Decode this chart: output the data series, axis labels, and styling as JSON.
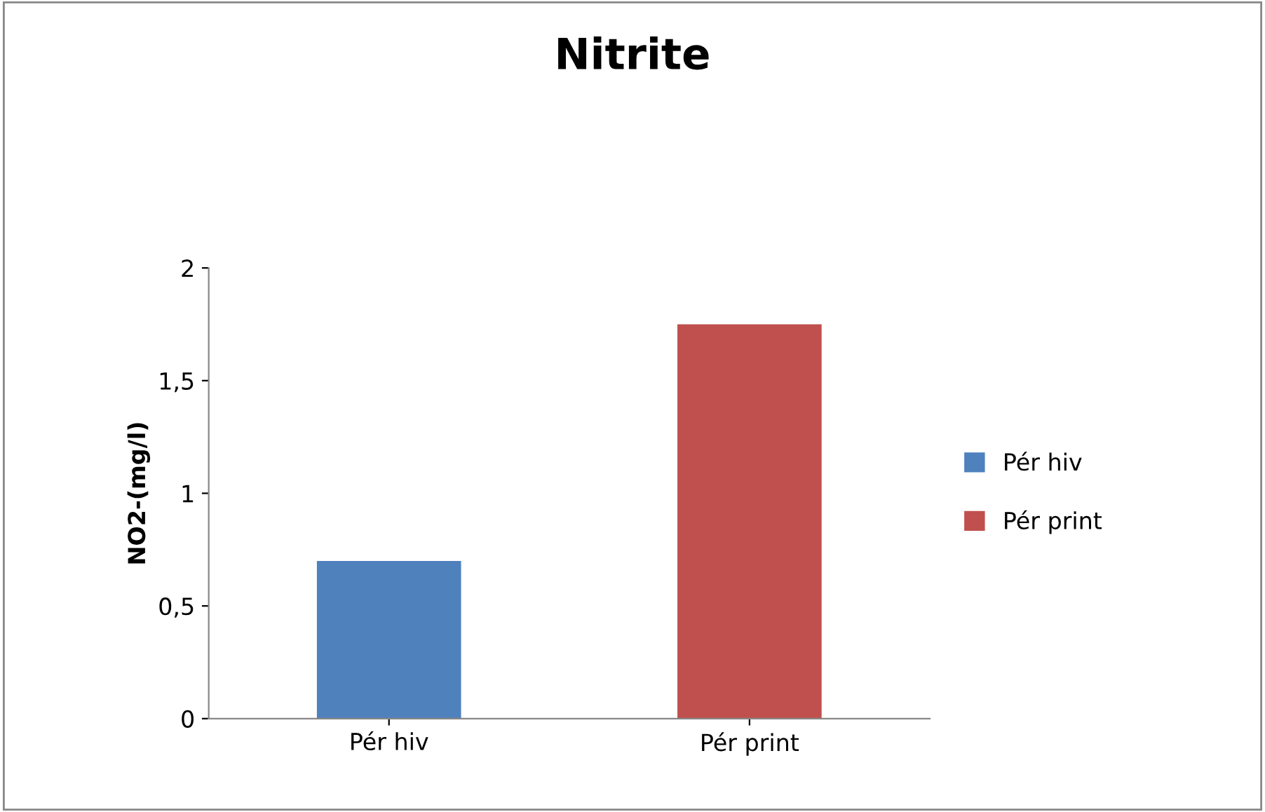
{
  "chart_data": {
    "type": "bar",
    "title": "Nitrite",
    "ylabel": "NO2-(mg/l)",
    "categories": [
      "Pér hiv",
      "Pér print"
    ],
    "series": [
      {
        "name": "Pér hiv",
        "color": "#4f81bd",
        "values": [
          0.7,
          null
        ]
      },
      {
        "name": "Pér print",
        "color": "#c0504d",
        "values": [
          null,
          1.75
        ]
      }
    ],
    "ylim": [
      0,
      2
    ],
    "yticks": [
      0,
      {
        "value": 0.5,
        "label": "0,5"
      },
      1,
      {
        "value": 1.5,
        "label": "1,5"
      },
      2
    ],
    "grid": false,
    "legend": "right"
  }
}
